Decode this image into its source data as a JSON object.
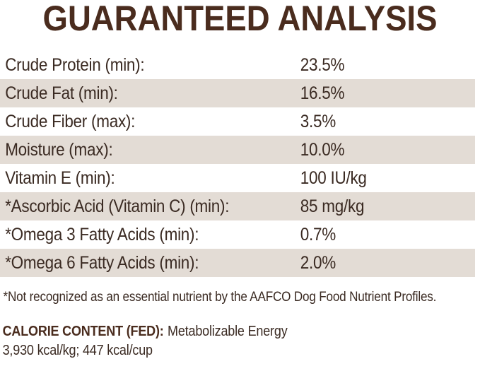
{
  "title": "GUARANTEED ANALYSIS",
  "colors": {
    "brand_brown": "#4a2c1e",
    "body_text": "#3a2a22",
    "stripe_beige": "#e3dcd5",
    "background": "#ffffff"
  },
  "table": {
    "rows": [
      {
        "label": "Crude Protein (min):",
        "value": "23.5%"
      },
      {
        "label": "Crude Fat (min):",
        "value": "16.5%"
      },
      {
        "label": "Crude Fiber (max):",
        "value": "3.5%"
      },
      {
        "label": "Moisture (max):",
        "value": "10.0%"
      },
      {
        "label": "Vitamin E (min):",
        "value": "100 IU/kg"
      },
      {
        "label": "*Ascorbic Acid (Vitamin C) (min):",
        "value": "85 mg/kg"
      },
      {
        "label": "*Omega 3 Fatty Acids (min):",
        "value": "0.7%"
      },
      {
        "label": "*Omega 6 Fatty Acids (min):",
        "value": "2.0%"
      }
    ]
  },
  "footnote": "*Not recognized as an essential nutrient by the AAFCO Dog Food Nutrient Profiles.",
  "calorie_content": {
    "heading": "CALORIE CONTENT (FED):",
    "description": "Metabolizable Energy",
    "values": "3,930 kcal/kg; 447 kcal/cup"
  }
}
